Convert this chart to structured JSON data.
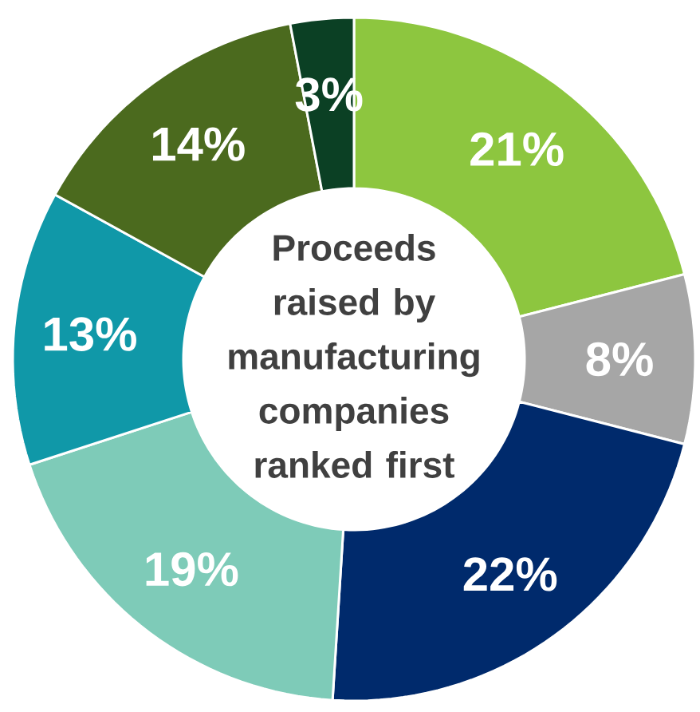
{
  "chart_data": {
    "type": "donut",
    "title": "Proceeds raised by manufacturing companies ranked first",
    "categories": [
      null,
      null,
      null,
      null,
      null,
      null,
      null
    ],
    "values": [
      21,
      8,
      22,
      19,
      13,
      14,
      3
    ],
    "value_labels": [
      "21%",
      "8%",
      "22%",
      "19%",
      "13%",
      "14%",
      "3%"
    ],
    "colors": [
      "#8dc63f",
      "#a6a6a6",
      "#002a6c",
      "#7ecbb8",
      "#1098a8",
      "#4b6a1e",
      "#0b4024"
    ]
  }
}
